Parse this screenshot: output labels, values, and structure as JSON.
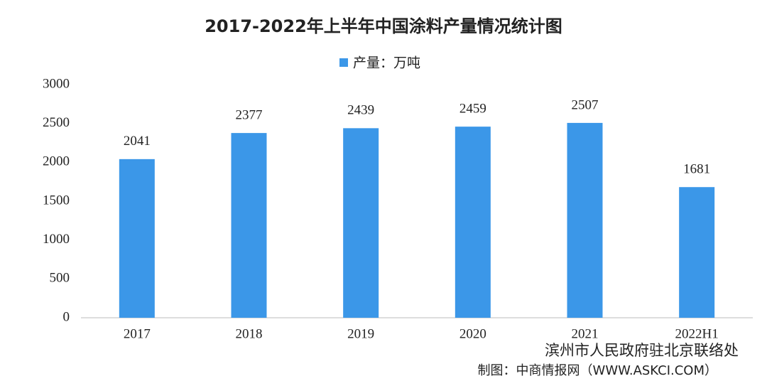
{
  "chart_data": {
    "type": "bar",
    "title": "2017-2022年上半年中国涂料产量情况统计图",
    "categories": [
      "2017",
      "2018",
      "2019",
      "2020",
      "2021",
      "2022H1"
    ],
    "series": [
      {
        "name": "产量：万吨",
        "color": "#3b97e8",
        "values": [
          2041,
          2377,
          2439,
          2459,
          2507,
          1681
        ]
      }
    ],
    "ylim": [
      0,
      3000
    ],
    "yticks": [
      0,
      500,
      1000,
      1500,
      2000,
      2500,
      3000
    ],
    "grid": false,
    "legend": "top",
    "source": "制图：中商情报网（WWW.ASKCI.COM）",
    "overlay": "滨州市人民政府驻北京联络处"
  }
}
